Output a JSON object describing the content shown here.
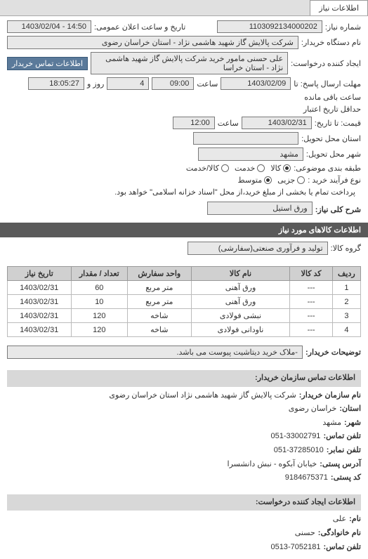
{
  "tabs": {
    "main_label": "اطلاعات نیاز"
  },
  "header": {
    "req_no_label": "شماره نیاز:",
    "req_no_value": "1103092134000202",
    "announce_label": "تاریخ و ساعت اعلان عمومی:",
    "announce_value": "14:50 - 1403/02/04",
    "buyer_org_label": "نام دستگاه خریدار:",
    "buyer_org_value": "شرکت پالایش گاز شهید هاشمی نژاد - استان خراسان رضوی",
    "requester_label": "ایجاد کننده درخواست:",
    "requester_value": "علی حسنی مامور خرید شرکت پالایش گاز شهید هاشمی نژاد - استان خراسا",
    "contact_link": "اطلاعات تماس خریدار",
    "reply_deadline_label": "مهلت ارسال پاسخ: تا",
    "reply_date": "1403/02/09",
    "reply_time_label": "ساعت",
    "reply_time": "09:00",
    "remaining_days": "4",
    "remaining_days_label": "روز و",
    "remaining_time": "18:05:27",
    "remaining_time_label": "ساعت باقی مانده",
    "credit_min_label": "حداقل تاریخ اعتبار",
    "credit_label2": "قیمت: تا تاریخ:",
    "credit_date": "1403/02/31",
    "credit_time_label": "ساعت",
    "credit_time": "12:00",
    "delivery_prov_label": "استان محل تحویل:",
    "delivery_city_label": "شهر محل تحویل:",
    "delivery_city": "مشهد",
    "category_label": "طبقه بندی موضوعی:",
    "radio_goods": "کالا",
    "radio_service": "خدمت",
    "radio_goods_service": "کالا/خدمت",
    "purchase_type_label": "نوع فرآیند خرید :",
    "radio_small": "جزیی",
    "radio_medium": "متوسط",
    "purchase_note": "پرداخت تمام یا بخشی از مبلغ خرید،از محل \"اسناد خزانه اسلامی\" خواهد بود.",
    "subject_label": "شرح کلی نیاز:",
    "subject_value": "ورق استیل"
  },
  "items_section": {
    "title": "اطلاعات کالاهای مورد نیاز",
    "group_label": "گروه کالا:",
    "group_value": "تولید و فرآوری صنعتی(سفارشی)"
  },
  "table": {
    "columns": [
      "ردیف",
      "کد کالا",
      "نام کالا",
      "واحد سفارش",
      "تعداد / مقدار",
      "تاریخ نیاز"
    ],
    "col_widths": [
      "8%",
      "12%",
      "28%",
      "18%",
      "16%",
      "18%"
    ],
    "rows": [
      [
        "1",
        "---",
        "ورق آهنی",
        "متر مربع",
        "60",
        "1403/02/31"
      ],
      [
        "2",
        "---",
        "ورق آهنی",
        "متر مربع",
        "10",
        "1403/02/31"
      ],
      [
        "3",
        "---",
        "نبشی فولادی",
        "شاخه",
        "120",
        "1403/02/31"
      ],
      [
        "4",
        "---",
        "ناودانی فولادی",
        "شاخه",
        "120",
        "1403/02/31"
      ]
    ]
  },
  "buyer_note": {
    "label": "توضیحات خریدار:",
    "value": "-ملاک خرید دیتاشیت پیوست می باشد."
  },
  "buyer_contact": {
    "section_title": "اطلاعات تماس سازمان خریدار:",
    "org_name_k": "نام سازمان خریدار:",
    "org_name_v": "شرکت پالایش گاز شهید هاشمی نژاد استان خراسان رضوی",
    "province_k": "استان:",
    "province_v": "خراسان رضوی",
    "city_k": "شهر:",
    "city_v": "مشهد",
    "phone_k": "تلفن تماس:",
    "phone_v": "33002791-051",
    "fax_k": "تلفن نمابر:",
    "fax_v": "37285010-051",
    "addr_k": "آدرس پستی:",
    "addr_v": "خیابان آبکوه - نبش دانشسرا",
    "postal_k": "کد پستی:",
    "postal_v": "9184675371"
  },
  "requester_contact": {
    "section_title": "اطلاعات ایجاد کننده درخواست:",
    "fname_k": "نام:",
    "fname_v": "علی",
    "lname_k": "نام خانوادگی:",
    "lname_v": "حسنی",
    "phone_k": "تلفن تماس:",
    "phone_v": "7052181-0513"
  },
  "colors": {
    "page_bg": "#7b7b7b",
    "tab_active_bg": "#ffffff",
    "tab_inactive_bg": "#c8c8c8",
    "field_border": "#7a7a7a",
    "link_bg": "#5b7a9a",
    "dark_band_bg": "#5a5a5a",
    "th_bg": "#d0d0d0",
    "info_hdr_bg": "#d8d8d8"
  }
}
